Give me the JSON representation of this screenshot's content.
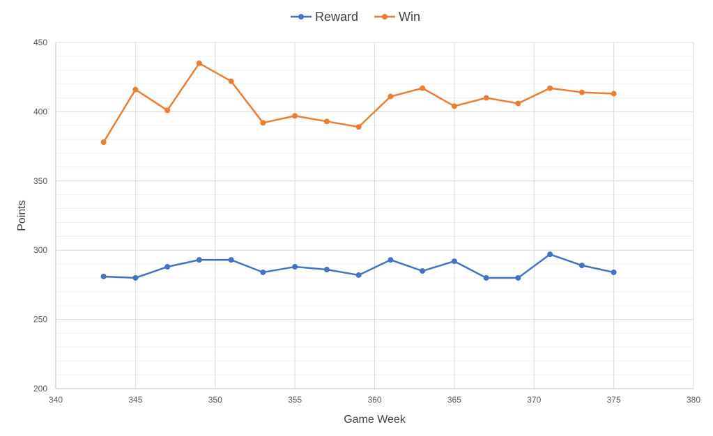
{
  "chart_data": {
    "type": "scatter",
    "xlabel": "Game Week",
    "ylabel": "Points",
    "xlim": [
      340,
      380
    ],
    "ylim": [
      200,
      450
    ],
    "x_ticks": [
      340,
      345,
      350,
      355,
      360,
      365,
      370,
      375,
      380
    ],
    "y_ticks": [
      200,
      250,
      300,
      350,
      400,
      450
    ],
    "x_tick_labels": [
      "340",
      "345",
      "350",
      "355",
      "360",
      "365",
      "370",
      "375",
      "380"
    ],
    "y_tick_labels": [
      "200",
      "250",
      "300",
      "350",
      "400",
      "450"
    ],
    "grid": true,
    "legend_position": "top-center",
    "series": [
      {
        "name": "Reward",
        "color": "#4472C4",
        "x": [
          343,
          345,
          347,
          349,
          351,
          353,
          355,
          357,
          359,
          361,
          363,
          365,
          367,
          369,
          371,
          373,
          375
        ],
        "y": [
          281,
          280,
          288,
          293,
          293,
          284,
          288,
          286,
          282,
          293,
          285,
          292,
          280,
          280,
          297,
          289,
          284
        ]
      },
      {
        "name": "Win",
        "color": "#ED7D31",
        "x": [
          343,
          345,
          347,
          349,
          351,
          353,
          355,
          357,
          359,
          361,
          363,
          365,
          367,
          369,
          371,
          373,
          375
        ],
        "y": [
          378,
          416,
          401,
          435,
          422,
          392,
          397,
          393,
          389,
          411,
          417,
          404,
          410,
          406,
          417,
          414,
          413
        ]
      }
    ]
  }
}
